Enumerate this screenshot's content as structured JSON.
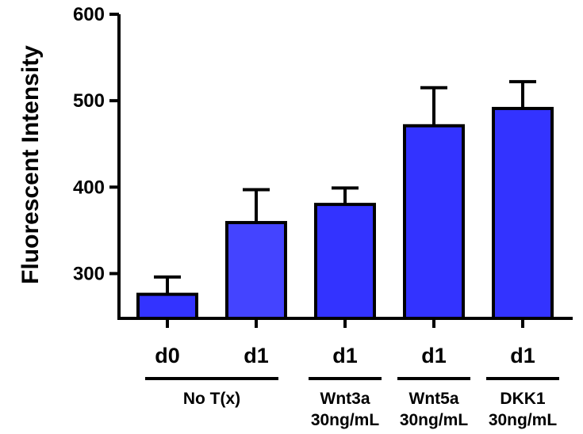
{
  "chart_data": {
    "type": "bar",
    "ylabel": "Fluorescent Intensity",
    "xlabel": "",
    "title": "",
    "ylim": [
      250,
      600
    ],
    "yticks": [
      300,
      400,
      500,
      600
    ],
    "categories": [
      "d0",
      "d1",
      "d1",
      "d1",
      "d1"
    ],
    "values": [
      276,
      359,
      380,
      471,
      491
    ],
    "errors": [
      20,
      38,
      19,
      44,
      31
    ],
    "bar_colors": [
      "#3333ff",
      "#4444ff",
      "#3333ff",
      "#3333ff",
      "#3333ff"
    ],
    "groups": [
      {
        "label": "No T(x)",
        "categories": [
          0,
          1
        ]
      },
      {
        "label": "Wnt3a\n30ng/mL",
        "categories": [
          2
        ]
      },
      {
        "label": "Wnt5a\n30ng/mL",
        "categories": [
          3
        ]
      },
      {
        "label": "DKK1\n30ng/mL",
        "categories": [
          4
        ]
      }
    ],
    "grid": false,
    "legend": "none"
  }
}
